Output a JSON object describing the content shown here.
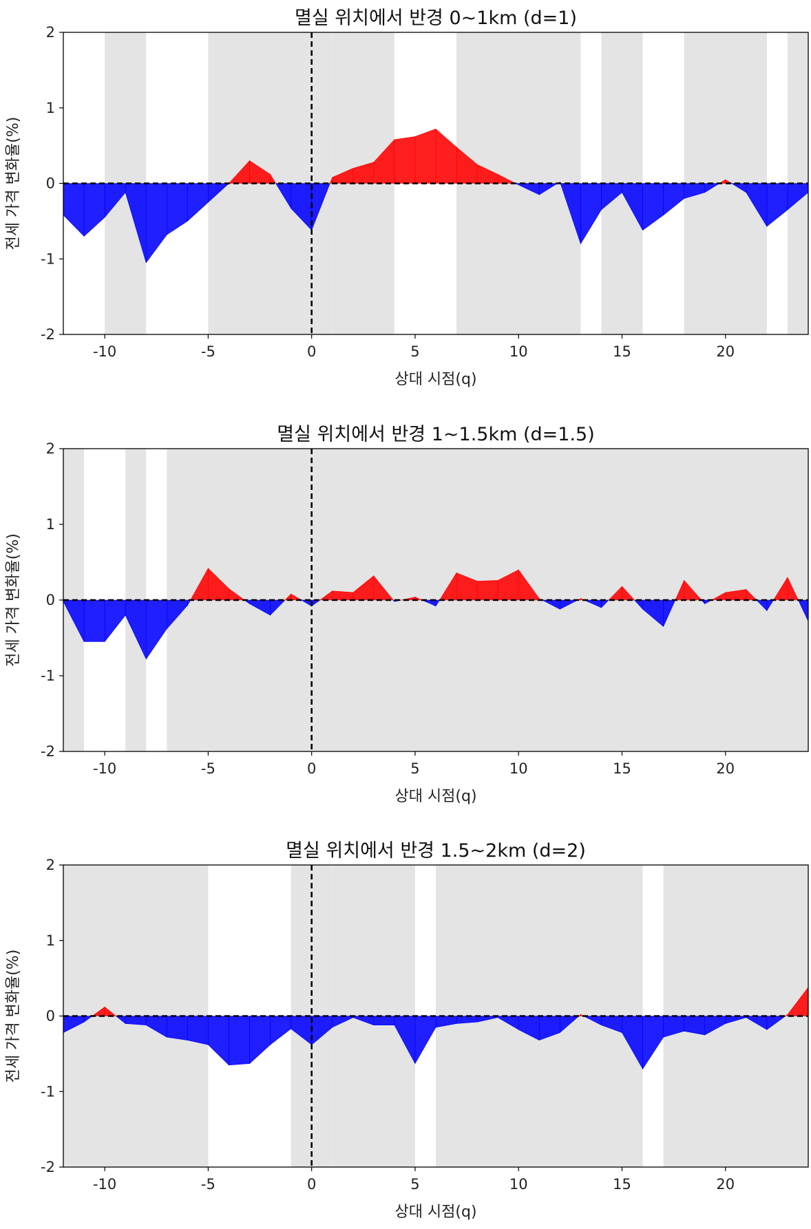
{
  "colors": {
    "positive": "#ff0000",
    "negative": "#0000ff",
    "shade": "#e4e4e4",
    "zero_line": "#000000",
    "axes": "#000000"
  },
  "chart_data": [
    {
      "type": "area",
      "title": "멸실 위치에서 반경 0~1km (d=1)",
      "xlabel": "상대 시점(q)",
      "ylabel": "전세 가격 변화율(%)",
      "xlim": [
        -12,
        24
      ],
      "ylim": [
        -2,
        2
      ],
      "xticks": [
        -10,
        -5,
        0,
        5,
        10,
        15,
        20
      ],
      "yticks": [
        -2,
        -1,
        0,
        1,
        2
      ],
      "event_line_x": 0,
      "shaded_ranges": [
        [
          -10,
          -8
        ],
        [
          -5,
          1
        ],
        [
          1,
          4
        ],
        [
          7,
          13
        ],
        [
          14,
          16
        ],
        [
          18,
          22
        ],
        [
          23,
          24
        ]
      ],
      "x": [
        -12,
        -11,
        -10,
        -9,
        -8,
        -7,
        -6,
        -5,
        -4,
        -3,
        -2,
        -1,
        0,
        1,
        2,
        3,
        4,
        5,
        6,
        7,
        8,
        9,
        10,
        11,
        12,
        13,
        14,
        15,
        16,
        17,
        18,
        19,
        20,
        21,
        22,
        23,
        24
      ],
      "values": [
        -0.42,
        -0.7,
        -0.45,
        -0.12,
        -1.05,
        -0.68,
        -0.5,
        -0.25,
        0.0,
        0.3,
        0.12,
        -0.33,
        -0.62,
        0.08,
        0.2,
        0.28,
        0.58,
        0.62,
        0.72,
        0.48,
        0.25,
        0.12,
        -0.02,
        -0.15,
        0.02,
        -0.8,
        -0.35,
        -0.12,
        -0.62,
        -0.42,
        -0.2,
        -0.12,
        0.05,
        -0.12,
        -0.57,
        -0.35,
        -0.12
      ]
    },
    {
      "type": "area",
      "title": "멸실 위치에서 반경 1~1.5km (d=1.5)",
      "xlabel": "상대 시점(q)",
      "ylabel": "전세 가격 변화율(%)",
      "xlim": [
        -12,
        24
      ],
      "ylim": [
        -2,
        2
      ],
      "xticks": [
        -10,
        -5,
        0,
        5,
        10,
        15,
        20
      ],
      "yticks": [
        -2,
        -1,
        0,
        1,
        2
      ],
      "event_line_x": 0,
      "shaded_ranges": [
        [
          -12,
          -11
        ],
        [
          -9,
          -8
        ],
        [
          -7,
          24
        ]
      ],
      "x": [
        -12,
        -11,
        -10,
        -9,
        -8,
        -7,
        -6,
        -5,
        -4,
        -3,
        -2,
        -1,
        0,
        1,
        2,
        3,
        4,
        5,
        6,
        7,
        8,
        9,
        10,
        11,
        12,
        13,
        14,
        15,
        16,
        17,
        18,
        19,
        20,
        21,
        22,
        23,
        24
      ],
      "values": [
        -0.02,
        -0.55,
        -0.55,
        -0.2,
        -0.78,
        -0.38,
        -0.07,
        0.42,
        0.15,
        -0.05,
        -0.2,
        0.08,
        -0.08,
        0.12,
        0.1,
        0.32,
        -0.02,
        0.04,
        -0.08,
        0.36,
        0.25,
        0.26,
        0.4,
        0.02,
        -0.12,
        0.02,
        -0.1,
        0.18,
        -0.12,
        -0.35,
        0.26,
        -0.05,
        0.1,
        0.14,
        -0.14,
        0.3,
        -0.28
      ]
    },
    {
      "type": "area",
      "title": "멸실 위치에서 반경 1.5~2km (d=2)",
      "xlabel": "상대 시점(q)",
      "ylabel": "전세 가격 변화율(%)",
      "xlim": [
        -12,
        24
      ],
      "ylim": [
        -2,
        2
      ],
      "xticks": [
        -10,
        -5,
        0,
        5,
        10,
        15,
        20
      ],
      "yticks": [
        -2,
        -1,
        0,
        1,
        2
      ],
      "event_line_x": 0,
      "shaded_ranges": [
        [
          -12,
          -5
        ],
        [
          -1,
          1
        ],
        [
          1,
          5
        ],
        [
          6,
          16
        ],
        [
          17,
          24
        ]
      ],
      "x": [
        -12,
        -11,
        -10,
        -9,
        -8,
        -7,
        -6,
        -5,
        -4,
        -3,
        -2,
        -1,
        0,
        1,
        2,
        3,
        4,
        5,
        6,
        7,
        8,
        9,
        10,
        11,
        12,
        13,
        14,
        15,
        16,
        17,
        18,
        19,
        20,
        21,
        22,
        23,
        24
      ],
      "values": [
        -0.22,
        -0.08,
        0.12,
        -0.1,
        -0.12,
        -0.28,
        -0.32,
        -0.38,
        -0.65,
        -0.63,
        -0.38,
        -0.17,
        -0.38,
        -0.15,
        -0.02,
        -0.12,
        -0.12,
        -0.63,
        -0.15,
        -0.1,
        -0.08,
        -0.02,
        -0.18,
        -0.32,
        -0.22,
        0.02,
        -0.12,
        -0.22,
        -0.7,
        -0.28,
        -0.2,
        -0.25,
        -0.1,
        -0.02,
        -0.18,
        0.02,
        0.38
      ]
    }
  ]
}
